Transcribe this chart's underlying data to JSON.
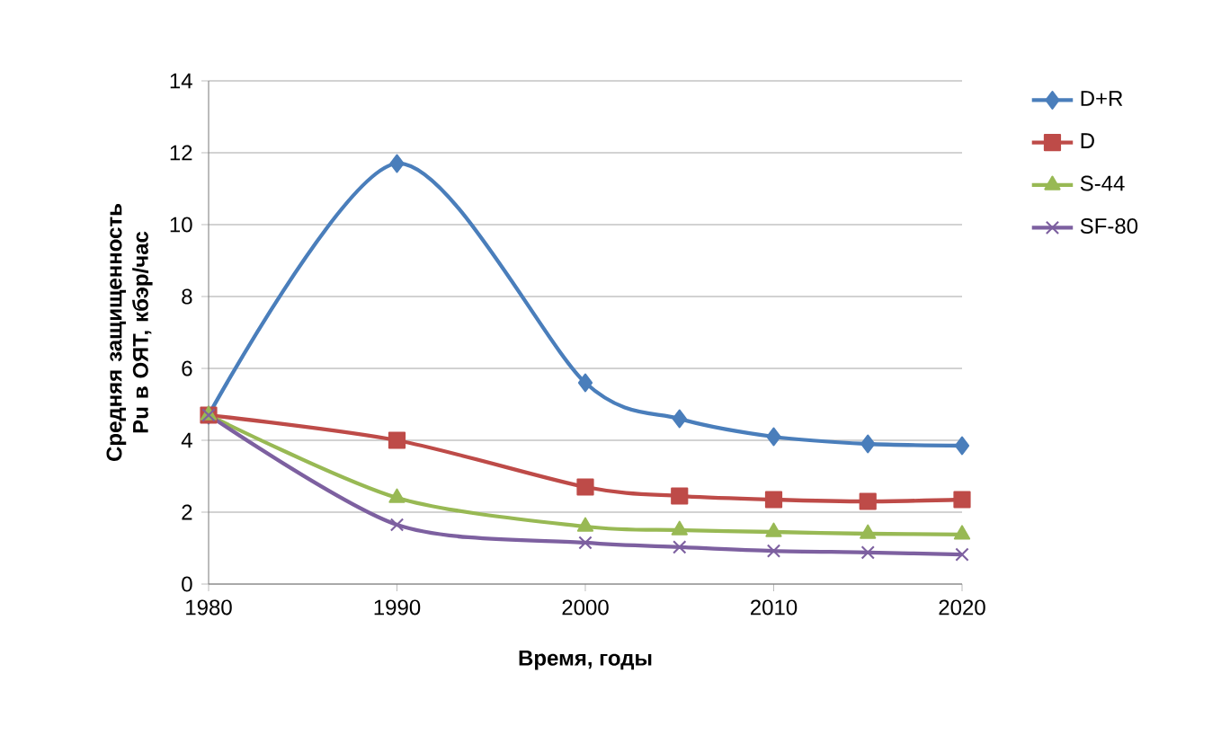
{
  "chart_data": {
    "type": "line",
    "xlabel": "Время,  годы",
    "ylabel": "Средняя защищенность Pu в ОЯТ,  кбэр/час",
    "x": [
      1980,
      1990,
      2000,
      2005,
      2010,
      2015,
      2020
    ],
    "xlim": [
      1980,
      2020
    ],
    "xticks": [
      1980,
      1990,
      2000,
      2010,
      2020
    ],
    "ylim": [
      0,
      14
    ],
    "yticks": [
      0,
      2,
      4,
      6,
      8,
      10,
      12,
      14
    ],
    "grid": "y",
    "legend": "right",
    "line_style": "solid",
    "series": [
      {
        "name": "D+R",
        "color": "#4a7ebb",
        "marker": "diamond",
        "values": [
          4.7,
          11.7,
          5.6,
          4.6,
          4.1,
          3.9,
          3.85
        ]
      },
      {
        "name": "D",
        "color": "#be4b48",
        "marker": "square",
        "values": [
          4.7,
          4.0,
          2.7,
          2.45,
          2.35,
          2.3,
          2.35
        ]
      },
      {
        "name": "S-44",
        "color": "#98b954",
        "marker": "triangle",
        "values": [
          4.7,
          2.4,
          1.6,
          1.5,
          1.45,
          1.4,
          1.38
        ]
      },
      {
        "name": "SF-80",
        "color": "#7d60a0",
        "marker": "cross",
        "values": [
          4.7,
          1.65,
          1.15,
          1.03,
          0.92,
          0.88,
          0.82
        ]
      }
    ]
  }
}
